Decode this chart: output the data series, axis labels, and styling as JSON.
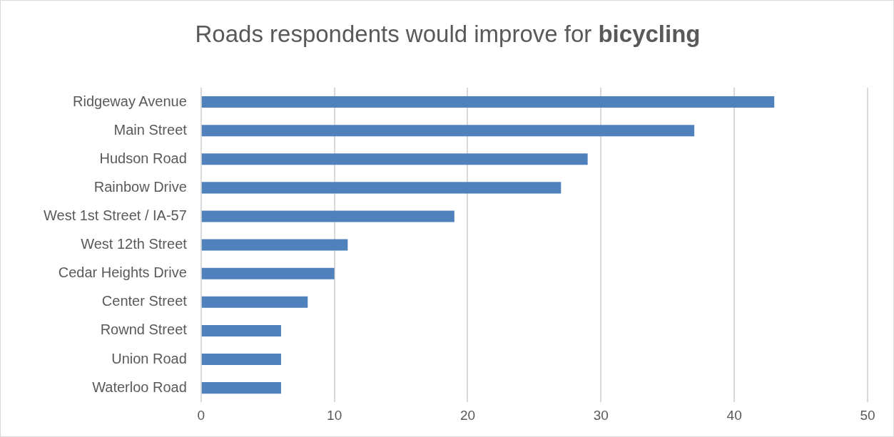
{
  "chart_data": {
    "type": "bar",
    "orientation": "horizontal",
    "title": "Roads respondents would improve for bicycling",
    "categories": [
      "Ridgeway Avenue",
      "Main Street",
      "Hudson Road",
      "Rainbow Drive",
      "West 1st Street / IA-57",
      "West 12th Street",
      "Cedar Heights Drive",
      "Center Street",
      "Rownd Street",
      "Union Road",
      "Waterloo Road"
    ],
    "values": [
      43,
      37,
      29,
      27,
      19,
      11,
      10,
      8,
      6,
      6,
      6
    ],
    "color": "#4f81bd",
    "xlim": [
      0,
      50
    ],
    "xticks": [
      0,
      10,
      20,
      30,
      40,
      50
    ],
    "grid": "x",
    "legend": false
  }
}
